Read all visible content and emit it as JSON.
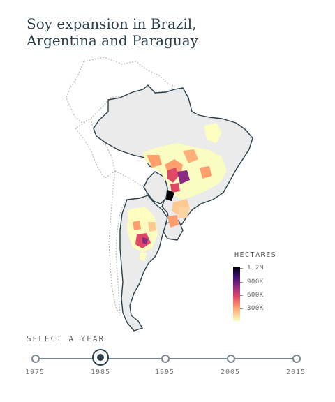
{
  "title": "Soy expansion in Brazil, Argentina and Paraguay",
  "legend": {
    "title": "HECTARES",
    "labels": [
      "1,2M",
      "900K",
      "600K",
      "300K"
    ],
    "color_scale": [
      "#000004",
      "#3b0f70",
      "#8c2981",
      "#de4968",
      "#fe9f6d",
      "#fcfdbf"
    ]
  },
  "map": {
    "countries_highlighted": [
      "Brazil",
      "Argentina",
      "Paraguay",
      "Uruguay"
    ],
    "fill_color": "#ebebeb",
    "border_color": "#2b3f4a",
    "context_border_color": "#b0b0b0"
  },
  "year_selector": {
    "label": "SELECT A YEAR",
    "years": [
      "1975",
      "1985",
      "1995",
      "2005",
      "2015"
    ],
    "selected": "1985"
  }
}
